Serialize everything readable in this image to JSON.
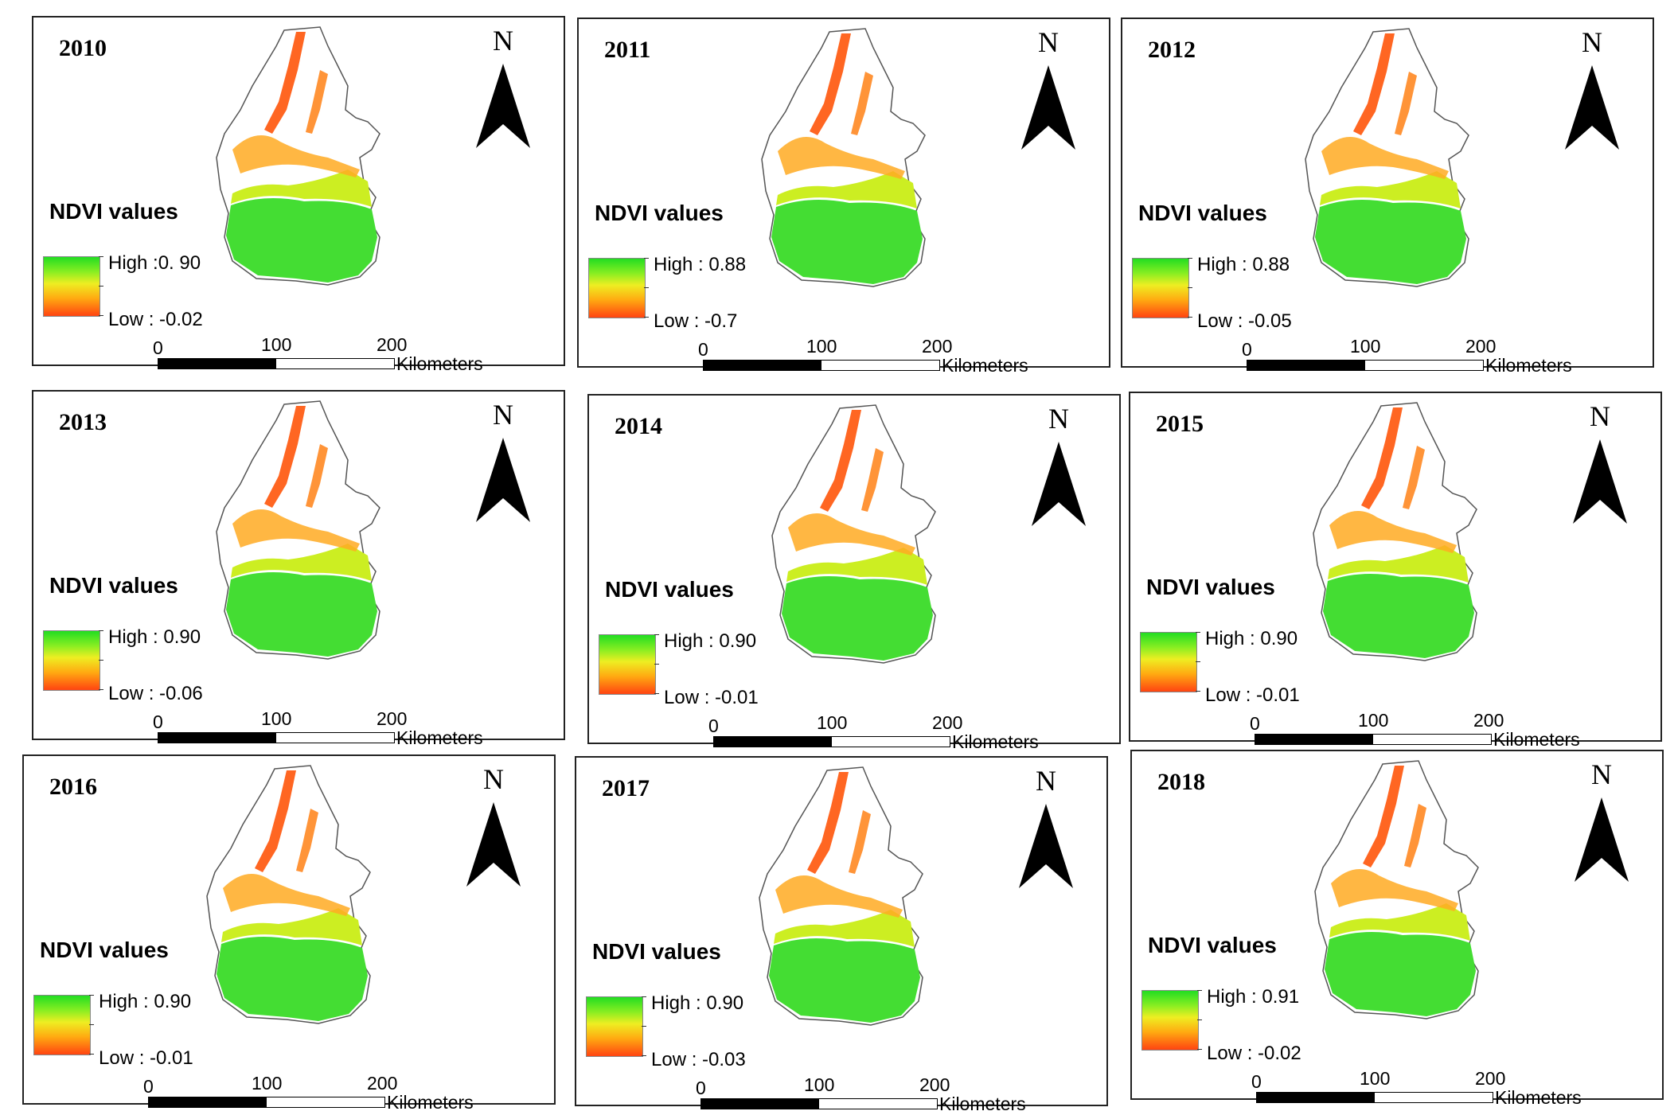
{
  "legend_colors": {
    "high": "#22dd22",
    "mid": "#eeee22",
    "low": "#ff4411",
    "map_outline": "#555555"
  },
  "panels": [
    {
      "year": "2010",
      "north_label": "N",
      "legend_title": "NDVI values",
      "high_label": "High :0. 90",
      "low_label": "Low : -0.02",
      "scale_0": "0",
      "scale_100": "100",
      "scale_200": "200",
      "scale_unit": "Kilometers"
    },
    {
      "year": "2011",
      "north_label": "N",
      "legend_title": "NDVI values",
      "high_label": "High : 0.88",
      "low_label": "Low : -0.7",
      "scale_0": "0",
      "scale_100": "100",
      "scale_200": "200",
      "scale_unit": "Kilometers"
    },
    {
      "year": "2012",
      "north_label": "N",
      "legend_title": "NDVI values",
      "high_label": "High : 0.88",
      "low_label": "Low : -0.05",
      "scale_0": "0",
      "scale_100": "100",
      "scale_200": "200",
      "scale_unit": "Kilometers"
    },
    {
      "year": "2013",
      "north_label": "N",
      "legend_title": "NDVI values",
      "high_label": "High : 0.90",
      "low_label": "Low : -0.06",
      "scale_0": "0",
      "scale_100": "100",
      "scale_200": "200",
      "scale_unit": "Kilometers"
    },
    {
      "year": "2014",
      "north_label": "N",
      "legend_title": "NDVI values",
      "high_label": "High : 0.90",
      "low_label": "Low : -0.01",
      "scale_0": "0",
      "scale_100": "100",
      "scale_200": "200",
      "scale_unit": "Kilometers"
    },
    {
      "year": "2015",
      "north_label": "N",
      "legend_title": "NDVI values",
      "high_label": "High : 0.90",
      "low_label": "Low : -0.01",
      "scale_0": "0",
      "scale_100": "100",
      "scale_200": "200",
      "scale_unit": "Kilometers"
    },
    {
      "year": "2016",
      "north_label": "N",
      "legend_title": "NDVI values",
      "high_label": "High : 0.90",
      "low_label": "Low : -0.01",
      "scale_0": "0",
      "scale_100": "100",
      "scale_200": "200",
      "scale_unit": "Kilometers"
    },
    {
      "year": "2017",
      "north_label": "N",
      "legend_title": "NDVI values",
      "high_label": "High : 0.90",
      "low_label": "Low : -0.03",
      "scale_0": "0",
      "scale_100": "100",
      "scale_200": "200",
      "scale_unit": "Kilometers"
    },
    {
      "year": "2018",
      "north_label": "N",
      "legend_title": "NDVI values",
      "high_label": "High : 0.91",
      "low_label": "Low : -0.02",
      "scale_0": "0",
      "scale_100": "100",
      "scale_200": "200",
      "scale_unit": "Kilometers"
    }
  ]
}
